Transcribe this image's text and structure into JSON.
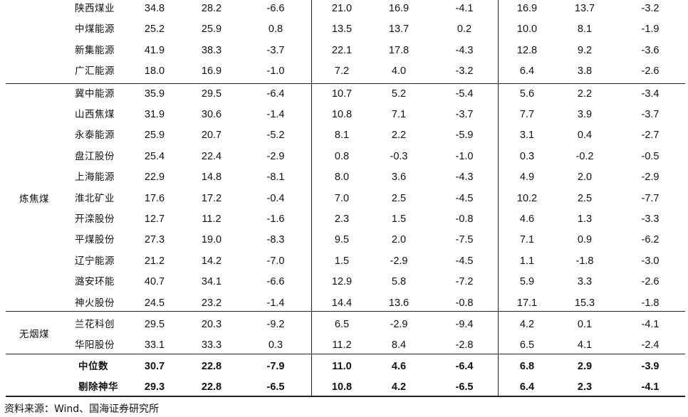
{
  "groups": [
    {
      "category": "",
      "rows": [
        {
          "name": "陕西煤业",
          "values": [
            "34.8",
            "28.2",
            "-6.6",
            "21.0",
            "16.9",
            "-4.1",
            "16.9",
            "13.7",
            "-3.2"
          ]
        },
        {
          "name": "中煤能源",
          "values": [
            "25.2",
            "25.9",
            "0.8",
            "13.5",
            "13.7",
            "0.2",
            "10.0",
            "8.1",
            "-1.9"
          ]
        },
        {
          "name": "新集能源",
          "values": [
            "41.9",
            "38.3",
            "-3.7",
            "22.1",
            "17.8",
            "-4.3",
            "12.8",
            "9.2",
            "-3.6"
          ]
        },
        {
          "name": "广汇能源",
          "values": [
            "18.0",
            "16.9",
            "-1.0",
            "7.2",
            "4.0",
            "-3.2",
            "6.4",
            "3.8",
            "-2.6"
          ]
        }
      ]
    },
    {
      "category": "炼焦煤",
      "rows": [
        {
          "name": "冀中能源",
          "values": [
            "35.9",
            "29.5",
            "-6.4",
            "10.7",
            "5.2",
            "-5.4",
            "5.6",
            "2.2",
            "-3.4"
          ]
        },
        {
          "name": "山西焦煤",
          "values": [
            "31.9",
            "30.6",
            "-1.4",
            "10.8",
            "7.1",
            "-3.7",
            "7.7",
            "3.9",
            "-3.7"
          ]
        },
        {
          "name": "永泰能源",
          "values": [
            "25.9",
            "20.7",
            "-5.2",
            "8.1",
            "2.2",
            "-5.9",
            "3.1",
            "0.4",
            "-2.7"
          ]
        },
        {
          "name": "盘江股份",
          "values": [
            "25.4",
            "22.4",
            "-2.9",
            "0.8",
            "-0.3",
            "-1.0",
            "0.3",
            "-0.2",
            "-0.5"
          ]
        },
        {
          "name": "上海能源",
          "values": [
            "22.9",
            "14.8",
            "-8.1",
            "8.0",
            "3.6",
            "-4.3",
            "4.9",
            "2.0",
            "-2.9"
          ]
        },
        {
          "name": "淮北矿业",
          "values": [
            "17.6",
            "17.2",
            "-0.4",
            "7.0",
            "2.5",
            "-4.5",
            "10.2",
            "2.5",
            "-7.7"
          ]
        },
        {
          "name": "开滦股份",
          "values": [
            "12.7",
            "11.2",
            "-1.6",
            "2.3",
            "1.5",
            "-0.8",
            "4.6",
            "1.3",
            "-3.3"
          ]
        },
        {
          "name": "平煤股份",
          "values": [
            "27.3",
            "19.0",
            "-8.3",
            "9.5",
            "2.0",
            "-7.5",
            "7.1",
            "0.9",
            "-6.2"
          ]
        },
        {
          "name": "辽宁能源",
          "values": [
            "21.2",
            "14.2",
            "-7.0",
            "1.5",
            "-2.9",
            "-4.5",
            "1.1",
            "-1.8",
            "-3.0"
          ]
        },
        {
          "name": "潞安环能",
          "values": [
            "40.7",
            "34.1",
            "-6.6",
            "12.9",
            "5.8",
            "-7.2",
            "5.9",
            "3.3",
            "-2.6"
          ]
        },
        {
          "name": "神火股份",
          "values": [
            "24.5",
            "23.2",
            "-1.4",
            "14.4",
            "13.6",
            "-0.8",
            "17.1",
            "15.3",
            "-1.8"
          ]
        }
      ]
    },
    {
      "category": "无烟煤",
      "rows": [
        {
          "name": "兰花科创",
          "values": [
            "29.5",
            "20.3",
            "-9.2",
            "6.5",
            "-2.9",
            "-9.4",
            "4.2",
            "0.1",
            "-4.1"
          ]
        },
        {
          "name": "华阳股份",
          "values": [
            "33.1",
            "33.3",
            "0.3",
            "11.2",
            "8.4",
            "-2.8",
            "6.5",
            "4.1",
            "-2.4"
          ]
        }
      ]
    }
  ],
  "summary": [
    {
      "name": "中位数",
      "values": [
        "30.7",
        "22.8",
        "-7.9",
        "11.0",
        "4.6",
        "-6.4",
        "6.8",
        "2.9",
        "-3.9"
      ]
    },
    {
      "name": "剔除神华",
      "values": [
        "29.3",
        "22.8",
        "-6.5",
        "10.8",
        "4.2",
        "-6.5",
        "6.4",
        "2.3",
        "-4.1"
      ]
    }
  ],
  "source": "资料来源：Wind、国海证券研究所"
}
